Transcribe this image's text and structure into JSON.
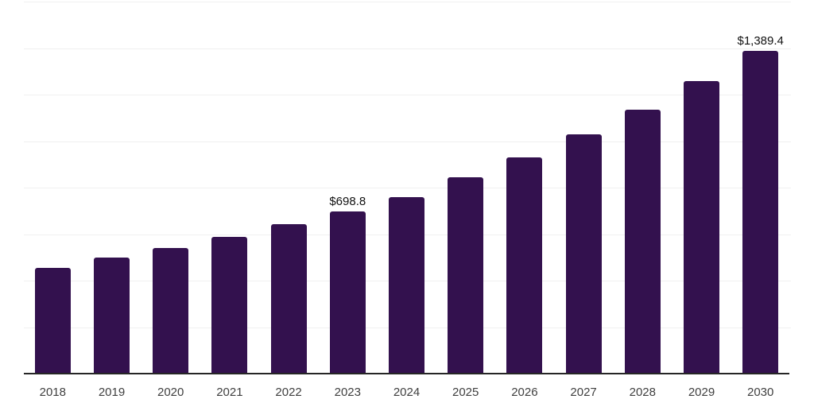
{
  "chart_data": {
    "type": "bar",
    "title": "",
    "xlabel": "",
    "ylabel": "",
    "categories": [
      "2018",
      "2019",
      "2020",
      "2021",
      "2022",
      "2023",
      "2024",
      "2025",
      "2026",
      "2027",
      "2028",
      "2029",
      "2030"
    ],
    "values": [
      456,
      498,
      541,
      589,
      643,
      698.8,
      760,
      845,
      929,
      1028,
      1134,
      1259,
      1389.4
    ],
    "data_labels": [
      null,
      null,
      null,
      null,
      null,
      "$698.8",
      null,
      null,
      null,
      null,
      null,
      null,
      "$1,389.4"
    ],
    "ylim": [
      0,
      1600
    ],
    "grid_step": 200,
    "grid": true,
    "legend": false,
    "colors": {
      "bar": "#33114e",
      "gridline": "#f0f0f0",
      "axis_line": "#262626",
      "tick_label": "#404040",
      "value_label": "#111111"
    }
  }
}
